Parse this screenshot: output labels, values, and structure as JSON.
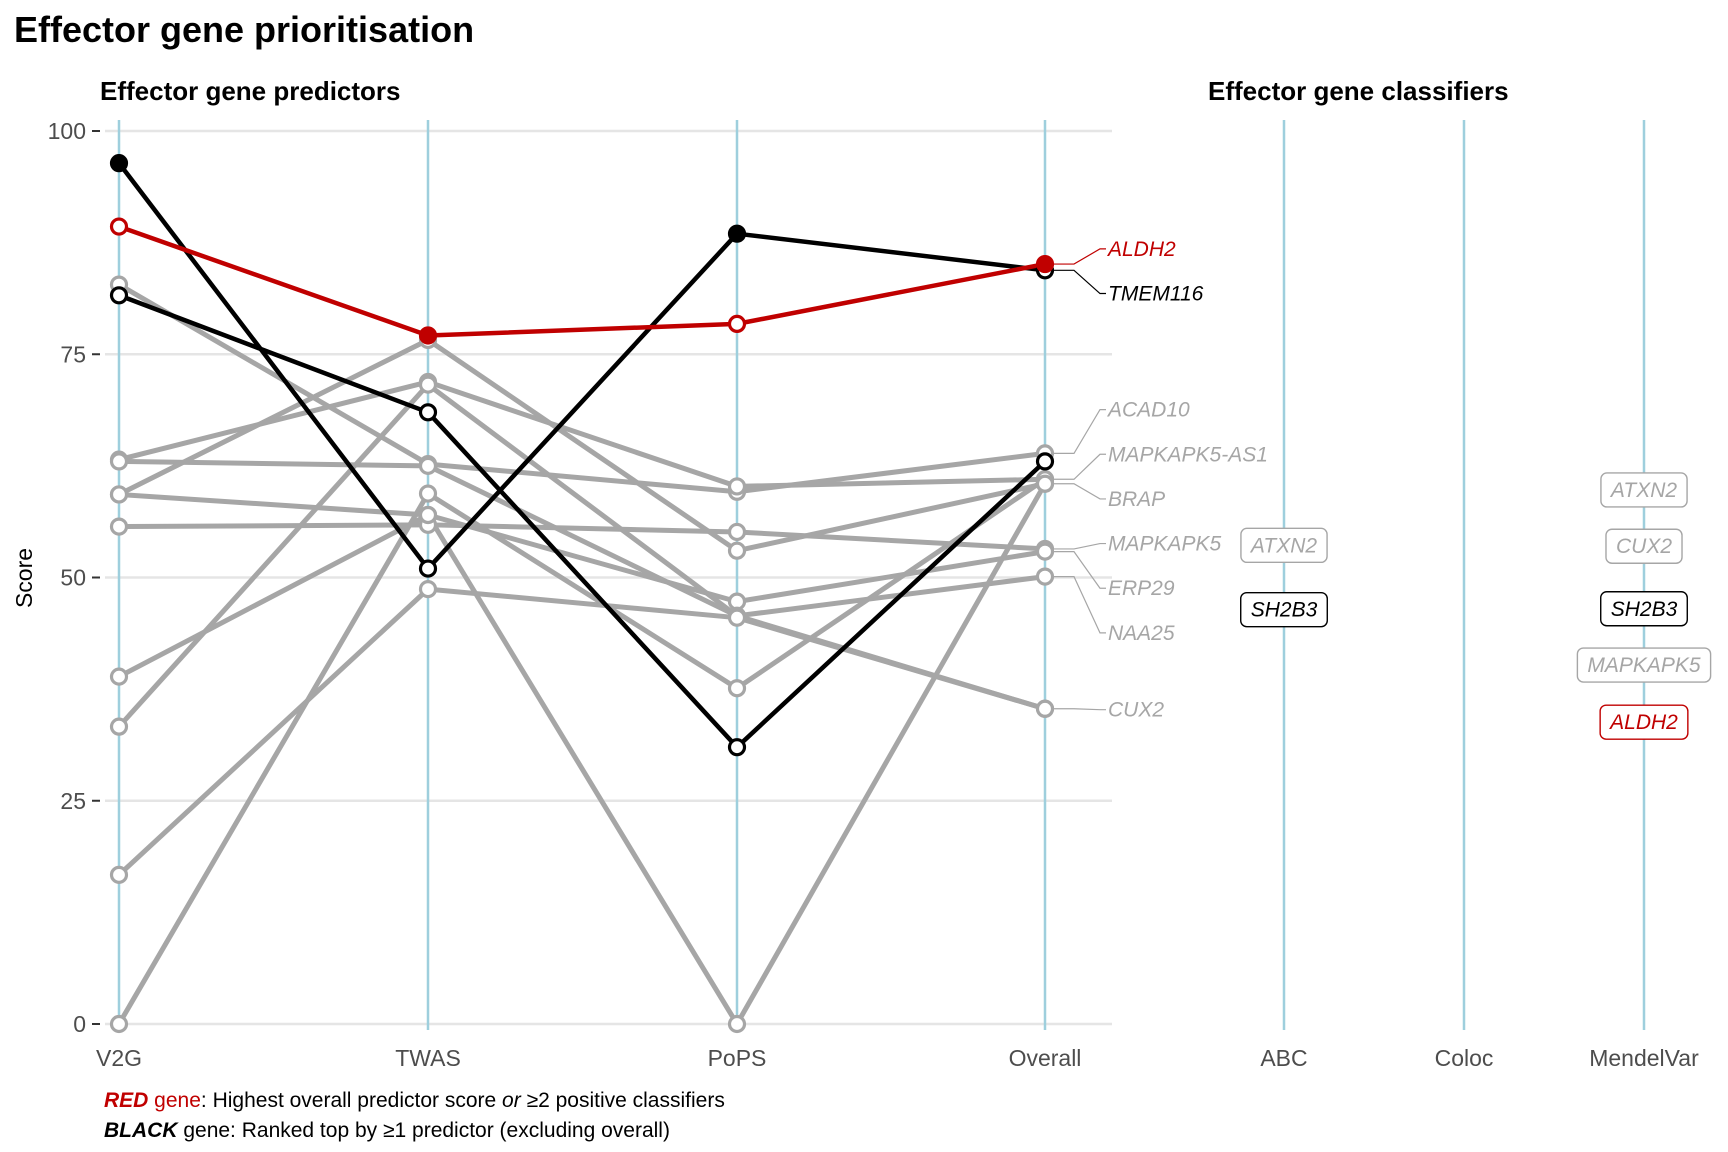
{
  "title": "Effector gene prioritisation",
  "colors": {
    "red": "#c00000",
    "black": "#000000",
    "grey": "#a6a6a6",
    "axis": "#9ecfdd",
    "grid": "#e5e5e5"
  },
  "chart_data": {
    "type": "line",
    "predictors": {
      "subtitle": "Effector gene predictors",
      "ylabel": "Score",
      "ylim": [
        0,
        100
      ],
      "yticks": [
        0,
        25,
        50,
        75,
        100
      ],
      "x": [
        "V2G",
        "TWAS",
        "PoPS",
        "Overall"
      ],
      "series": [
        {
          "name": "ALDH2",
          "color": "red",
          "values": [
            89.3,
            77.1,
            78.4,
            85.1
          ],
          "filled": [
            false,
            true,
            false,
            true
          ]
        },
        {
          "name": "TMEM116",
          "color": "black",
          "values": [
            96.4,
            51.0,
            88.5,
            84.4
          ],
          "filled": [
            true,
            false,
            true,
            false
          ]
        },
        {
          "name": "",
          "color": "black",
          "values": [
            81.6,
            68.5,
            31.0,
            63.0
          ],
          "filled": [
            false,
            false,
            false,
            false
          ]
        },
        {
          "name": "ACAD10",
          "color": "grey",
          "values": [
            82.8,
            62.7,
            59.6,
            63.9
          ],
          "filled": [
            false,
            false,
            false,
            false
          ]
        },
        {
          "name": "MAPKAPK5-AS1",
          "color": "grey",
          "values": [
            63.2,
            71.9,
            60.2,
            61.0
          ],
          "filled": [
            false,
            false,
            false,
            false
          ]
        },
        {
          "name": "BRAP",
          "color": "grey",
          "values": [
            59.3,
            76.6,
            53.0,
            60.5
          ],
          "filled": [
            false,
            false,
            false,
            false
          ]
        },
        {
          "name": "MAPKAPK5",
          "color": "grey",
          "values": [
            55.7,
            55.9,
            55.1,
            53.2
          ],
          "filled": [
            false,
            false,
            false,
            false
          ]
        },
        {
          "name": "ERP29",
          "color": "grey",
          "values": [
            38.9,
            57.0,
            47.3,
            52.9
          ],
          "filled": [
            false,
            false,
            false,
            false
          ]
        },
        {
          "name": "NAA25",
          "color": "grey",
          "values": [
            63.0,
            62.5,
            45.7,
            50.1
          ],
          "filled": [
            false,
            false,
            false,
            false
          ]
        },
        {
          "name": "CUX2",
          "color": "grey",
          "values": [
            33.3,
            71.6,
            45.7,
            35.3
          ],
          "filled": [
            false,
            false,
            false,
            false
          ]
        },
        {
          "name": "",
          "color": "grey",
          "values": [
            16.7,
            48.7,
            45.5,
            35.3
          ],
          "filled": [
            false,
            false,
            false,
            false
          ]
        },
        {
          "name": "",
          "color": "grey",
          "values": [
            0,
            59.4,
            37.6,
            61.0
          ],
          "filled": [
            false,
            false,
            false,
            false
          ]
        },
        {
          "name": "",
          "color": "grey",
          "values": [
            59.3,
            57.0,
            0,
            60.5
          ],
          "filled": [
            false,
            false,
            false,
            false
          ]
        }
      ],
      "labels": [
        {
          "text": "ALDH2",
          "color": "red",
          "value": 85.1,
          "label_y": 86.8
        },
        {
          "text": "TMEM116",
          "color": "black",
          "value": 84.4,
          "label_y": 81.8
        },
        {
          "text": "ACAD10",
          "color": "grey",
          "value": 63.9,
          "label_y": 68.8
        },
        {
          "text": "MAPKAPK5-AS1",
          "color": "grey",
          "value": 61.0,
          "label_y": 63.8
        },
        {
          "text": "BRAP",
          "color": "grey",
          "value": 60.5,
          "label_y": 58.8
        },
        {
          "text": "MAPKAPK5",
          "color": "grey",
          "value": 53.2,
          "label_y": 53.8
        },
        {
          "text": "ERP29",
          "color": "grey",
          "value": 52.9,
          "label_y": 48.8
        },
        {
          "text": "NAA25",
          "color": "grey",
          "value": 50.1,
          "label_y": 43.8
        },
        {
          "text": "CUX2",
          "color": "grey",
          "value": 35.3,
          "label_y": 35.2
        }
      ]
    },
    "classifiers": {
      "subtitle": "Effector gene classifiers",
      "x": [
        "ABC",
        "Coloc",
        "MendelVar"
      ],
      "genes": [
        {
          "column": "ABC",
          "text": "ATXN2",
          "color": "grey",
          "y": 53.6
        },
        {
          "column": "ABC",
          "text": "SH2B3",
          "color": "black",
          "y": 46.4
        },
        {
          "column": "MendelVar",
          "text": "ATXN2",
          "color": "grey",
          "y": 59.8
        },
        {
          "column": "MendelVar",
          "text": "CUX2",
          "color": "grey",
          "y": 53.5
        },
        {
          "column": "MendelVar",
          "text": "SH2B3",
          "color": "black",
          "y": 46.5
        },
        {
          "column": "MendelVar",
          "text": "MAPKAPK5",
          "color": "grey",
          "y": 40.2
        },
        {
          "column": "MendelVar",
          "text": "ALDH2",
          "color": "red",
          "y": 33.8
        }
      ]
    }
  },
  "caption": {
    "line1": {
      "word": "RED",
      "gene": " gene",
      "rest_a": ": Highest overall predictor score ",
      "or": "or",
      "rest_b": " ≥2 positive classifiers"
    },
    "line2": {
      "word": "BLACK",
      "rest": " gene: Ranked top by ≥1 predictor (excluding overall)"
    }
  }
}
